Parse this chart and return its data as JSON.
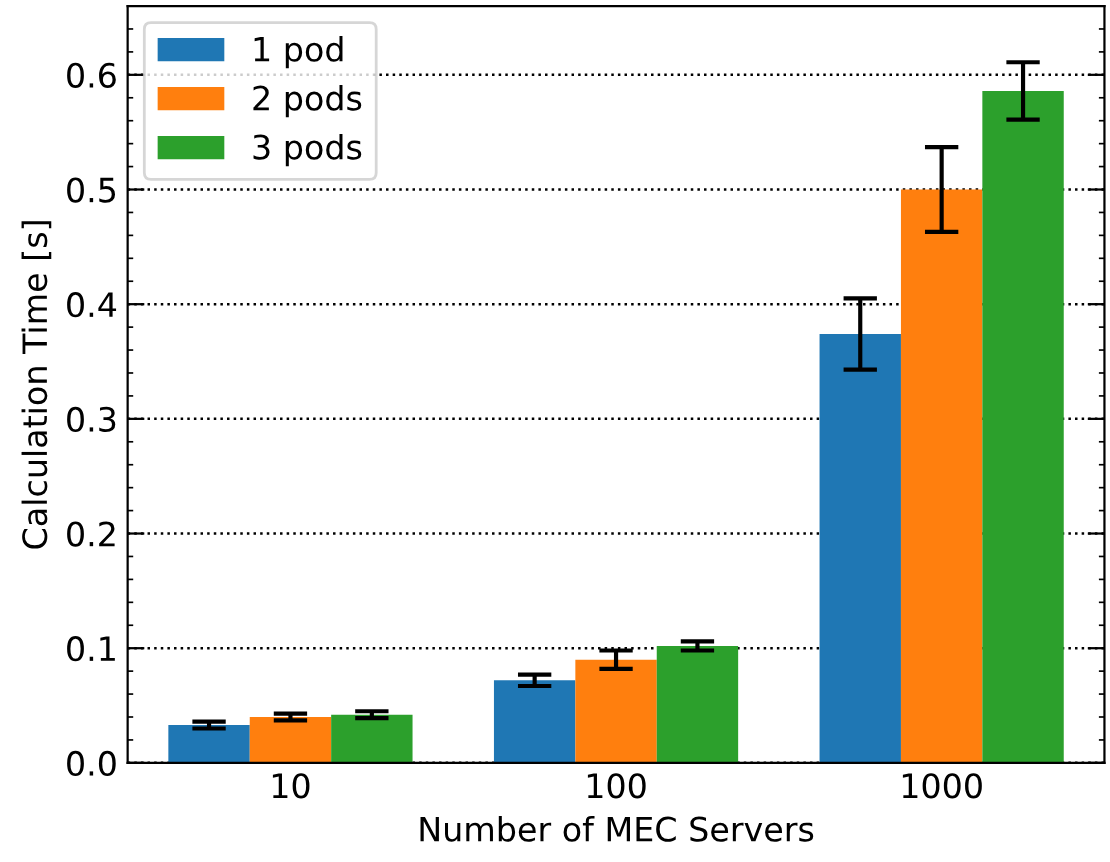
{
  "chart_data": {
    "type": "bar",
    "xlabel": "Number of MEC Servers",
    "ylabel": "Calculation Time [s]",
    "categories": [
      "10",
      "100",
      "1000"
    ],
    "series": [
      {
        "name": "1 pod",
        "color": "#1f77b4",
        "values": [
          0.033,
          0.072,
          0.374
        ],
        "errors": [
          0.003,
          0.005,
          0.031
        ]
      },
      {
        "name": "2 pods",
        "color": "#ff7f0e",
        "values": [
          0.04,
          0.09,
          0.5
        ],
        "errors": [
          0.003,
          0.008,
          0.037
        ]
      },
      {
        "name": "3 pods",
        "color": "#2ca02c",
        "values": [
          0.042,
          0.102,
          0.586
        ],
        "errors": [
          0.003,
          0.004,
          0.025
        ]
      }
    ],
    "ylim": [
      0,
      0.66
    ],
    "yticks": [
      {
        "value": 0,
        "label": "0.0"
      },
      0.1,
      0.2,
      0.3,
      0.4,
      0.5,
      0.6
    ],
    "grid": "y",
    "legend": "top left"
  }
}
